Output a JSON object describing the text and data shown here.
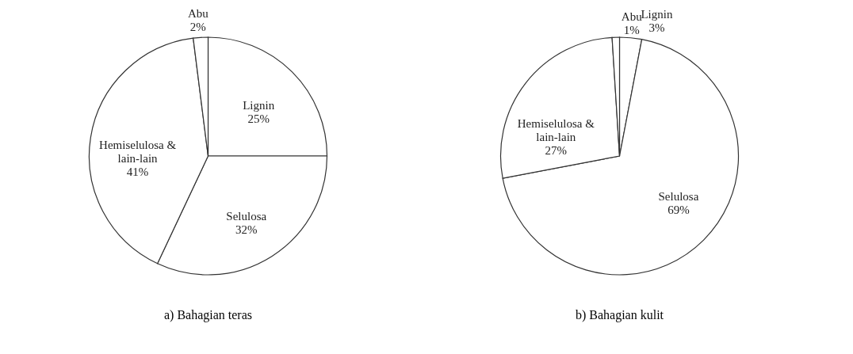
{
  "chart_data": [
    {
      "type": "pie",
      "title": "a) Bahagian teras",
      "categories": [
        "Lignin",
        "Selulosa",
        "Hemiselulosa & lain-lain",
        "Abu"
      ],
      "values": [
        25,
        32,
        41,
        2
      ],
      "value_labels": [
        "25%",
        "32%",
        "41%",
        "2%"
      ],
      "colors": [
        "#ffffff",
        "#ffffff",
        "#ffffff",
        "#ffffff"
      ]
    },
    {
      "type": "pie",
      "title": "b) Bahagian kulit",
      "categories": [
        "Lignin",
        "Selulosa",
        "Hemiselulosa & lain-lain",
        "Abu"
      ],
      "values": [
        3,
        69,
        27,
        1
      ],
      "value_labels": [
        "3%",
        "69%",
        "27%",
        "1%"
      ],
      "colors": [
        "#ffffff",
        "#ffffff",
        "#ffffff",
        "#ffffff"
      ]
    }
  ]
}
